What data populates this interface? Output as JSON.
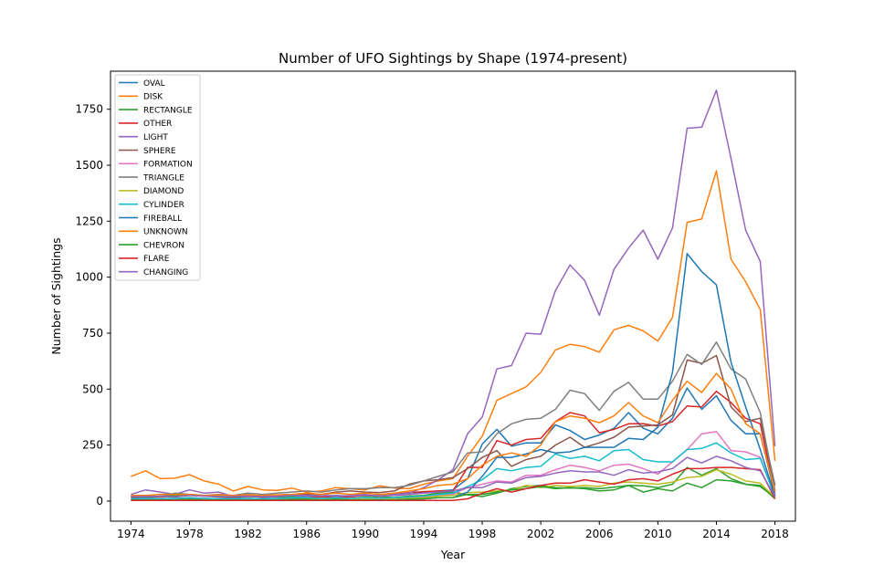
{
  "chart_data": {
    "type": "line",
    "title": "Number of UFO Sightings by Shape (1974-present)",
    "xlabel": "Year",
    "ylabel": "Number of Sightings",
    "xlim": [
      1972.6,
      2019.4
    ],
    "ylim": [
      -90,
      1920
    ],
    "x_ticks": [
      1974,
      1978,
      1982,
      1986,
      1990,
      1994,
      1998,
      2002,
      2006,
      2010,
      2014,
      2018
    ],
    "y_ticks": [
      0,
      250,
      500,
      750,
      1000,
      1250,
      1500,
      1750
    ],
    "x_tick_labels": [
      "1974",
      "1978",
      "1982",
      "1986",
      "1990",
      "1994",
      "1998",
      "2002",
      "2006",
      "2010",
      "2014",
      "2018"
    ],
    "y_tick_labels": [
      "0",
      "250",
      "500",
      "750",
      "1000",
      "1250",
      "1500",
      "1750"
    ],
    "grid": false,
    "legend_position": "top-left",
    "x": [
      1974,
      1975,
      1976,
      1977,
      1978,
      1979,
      1980,
      1981,
      1982,
      1983,
      1984,
      1985,
      1986,
      1987,
      1988,
      1989,
      1990,
      1991,
      1992,
      1993,
      1994,
      1995,
      1996,
      1997,
      1998,
      1999,
      2000,
      2001,
      2002,
      2003,
      2004,
      2005,
      2006,
      2007,
      2008,
      2009,
      2010,
      2011,
      2012,
      2013,
      2014,
      2015,
      2016,
      2017,
      2018
    ],
    "series": [
      {
        "name": "OVAL",
        "color": "#1f77b4",
        "values": [
          20,
          22,
          20,
          25,
          28,
          24,
          20,
          18,
          22,
          18,
          20,
          24,
          26,
          22,
          20,
          22,
          26,
          24,
          25,
          30,
          38,
          45,
          50,
          100,
          255,
          320,
          245,
          260,
          260,
          340,
          315,
          275,
          295,
          325,
          395,
          325,
          300,
          370,
          505,
          410,
          470,
          360,
          300,
          300,
          30
        ]
      },
      {
        "name": "DISK",
        "color": "#ff7f0e",
        "values": [
          110,
          135,
          100,
          102,
          118,
          90,
          75,
          45,
          65,
          50,
          48,
          58,
          40,
          45,
          60,
          55,
          50,
          68,
          58,
          55,
          75,
          90,
          100,
          200,
          290,
          450,
          480,
          510,
          575,
          675,
          700,
          690,
          665,
          765,
          785,
          760,
          715,
          820,
          1245,
          1260,
          1475,
          1080,
          980,
          855,
          180
        ]
      },
      {
        "name": "RECTANGLE",
        "color": "#2ca02c",
        "values": [
          20,
          18,
          22,
          25,
          28,
          24,
          20,
          20,
          22,
          20,
          18,
          20,
          22,
          20,
          18,
          20,
          22,
          18,
          16,
          22,
          25,
          35,
          40,
          28,
          20,
          35,
          55,
          65,
          70,
          60,
          58,
          60,
          55,
          62,
          70,
          68,
          60,
          75,
          150,
          115,
          145,
          100,
          75,
          65,
          15
        ]
      },
      {
        "name": "OTHER",
        "color": "#d62728",
        "values": [
          10,
          10,
          12,
          10,
          15,
          12,
          10,
          10,
          12,
          10,
          12,
          15,
          15,
          18,
          20,
          18,
          25,
          22,
          30,
          38,
          42,
          45,
          45,
          150,
          150,
          270,
          250,
          275,
          280,
          355,
          395,
          380,
          305,
          320,
          345,
          345,
          335,
          355,
          425,
          420,
          490,
          440,
          370,
          345,
          40
        ]
      },
      {
        "name": "LIGHT",
        "color": "#9467bd",
        "values": [
          30,
          50,
          40,
          30,
          50,
          35,
          40,
          20,
          30,
          15,
          20,
          25,
          20,
          30,
          20,
          25,
          30,
          20,
          30,
          35,
          60,
          95,
          140,
          300,
          375,
          590,
          605,
          750,
          745,
          940,
          1055,
          985,
          830,
          1035,
          1130,
          1210,
          1080,
          1220,
          1665,
          1670,
          1835,
          1530,
          1210,
          1070,
          245
        ]
      },
      {
        "name": "SPHERE",
        "color": "#8c564b",
        "values": [
          15,
          15,
          20,
          18,
          25,
          22,
          18,
          15,
          20,
          18,
          22,
          28,
          32,
          30,
          40,
          45,
          40,
          38,
          45,
          75,
          90,
          95,
          105,
          145,
          195,
          225,
          155,
          185,
          200,
          250,
          285,
          240,
          260,
          285,
          330,
          335,
          340,
          385,
          630,
          615,
          650,
          420,
          355,
          370,
          70
        ]
      },
      {
        "name": "FORMATION",
        "color": "#e377c2",
        "values": [
          8,
          8,
          10,
          8,
          12,
          10,
          8,
          8,
          10,
          8,
          10,
          12,
          12,
          10,
          12,
          10,
          12,
          10,
          12,
          15,
          18,
          25,
          30,
          60,
          75,
          90,
          85,
          115,
          115,
          140,
          160,
          150,
          135,
          160,
          165,
          145,
          120,
          175,
          230,
          300,
          310,
          225,
          220,
          195,
          25
        ]
      },
      {
        "name": "TRIANGLE",
        "color": "#7f7f7f",
        "values": [
          20,
          25,
          20,
          35,
          30,
          25,
          30,
          25,
          35,
          30,
          35,
          40,
          45,
          40,
          50,
          55,
          55,
          60,
          60,
          70,
          90,
          110,
          130,
          215,
          220,
          300,
          345,
          365,
          370,
          410,
          495,
          480,
          405,
          490,
          530,
          455,
          455,
          535,
          655,
          610,
          710,
          590,
          545,
          395,
          50
        ]
      },
      {
        "name": "DIAMOND",
        "color": "#bcbd22",
        "values": [
          5,
          5,
          6,
          5,
          8,
          6,
          5,
          5,
          6,
          5,
          6,
          8,
          10,
          8,
          10,
          8,
          10,
          8,
          10,
          12,
          15,
          22,
          25,
          38,
          40,
          45,
          50,
          70,
          60,
          70,
          65,
          70,
          65,
          80,
          85,
          80,
          75,
          85,
          105,
          110,
          140,
          120,
          90,
          80,
          15
        ]
      },
      {
        "name": "CYLINDER",
        "color": "#17becf",
        "values": [
          10,
          12,
          10,
          12,
          15,
          12,
          10,
          10,
          12,
          10,
          12,
          15,
          15,
          12,
          15,
          12,
          15,
          12,
          15,
          18,
          22,
          30,
          35,
          65,
          95,
          145,
          135,
          150,
          155,
          210,
          190,
          200,
          180,
          225,
          230,
          185,
          175,
          175,
          230,
          235,
          260,
          215,
          185,
          190,
          20
        ]
      },
      {
        "name": "FIREBALL",
        "color": "#1f77b4",
        "values": [
          5,
          5,
          5,
          5,
          8,
          5,
          5,
          5,
          5,
          5,
          5,
          8,
          8,
          5,
          8,
          5,
          5,
          5,
          5,
          8,
          10,
          15,
          15,
          40,
          110,
          195,
          195,
          210,
          230,
          215,
          220,
          240,
          240,
          240,
          280,
          275,
          330,
          575,
          1105,
          1025,
          965,
          620,
          420,
          230,
          20
        ]
      },
      {
        "name": "UNKNOWN",
        "color": "#ff7f0e",
        "values": [
          25,
          25,
          30,
          30,
          30,
          25,
          28,
          25,
          28,
          25,
          28,
          30,
          35,
          30,
          35,
          30,
          35,
          30,
          35,
          45,
          55,
          70,
          75,
          100,
          160,
          200,
          215,
          200,
          250,
          355,
          380,
          370,
          350,
          380,
          440,
          380,
          350,
          450,
          535,
          485,
          570,
          500,
          345,
          300,
          40
        ]
      },
      {
        "name": "CHEVRON",
        "color": "#2ca02c",
        "values": [
          5,
          5,
          5,
          5,
          8,
          5,
          5,
          5,
          5,
          5,
          5,
          8,
          8,
          5,
          8,
          5,
          5,
          5,
          5,
          8,
          10,
          15,
          15,
          30,
          30,
          40,
          50,
          55,
          65,
          55,
          60,
          55,
          45,
          50,
          70,
          40,
          55,
          45,
          80,
          60,
          95,
          90,
          75,
          70,
          10
        ]
      },
      {
        "name": "FLARE",
        "color": "#d62728",
        "values": [
          3,
          3,
          3,
          3,
          3,
          3,
          3,
          3,
          3,
          3,
          3,
          3,
          3,
          3,
          3,
          3,
          3,
          3,
          3,
          3,
          3,
          3,
          3,
          10,
          35,
          55,
          40,
          55,
          70,
          80,
          80,
          95,
          85,
          75,
          95,
          100,
          90,
          120,
          145,
          145,
          150,
          150,
          145,
          140,
          10
        ]
      },
      {
        "name": "CHANGING",
        "color": "#9467bd",
        "values": [
          20,
          20,
          22,
          20,
          25,
          22,
          20,
          20,
          22,
          20,
          22,
          25,
          25,
          22,
          25,
          22,
          25,
          22,
          25,
          30,
          35,
          40,
          45,
          60,
          60,
          85,
          80,
          105,
          110,
          125,
          135,
          130,
          130,
          115,
          140,
          125,
          130,
          145,
          195,
          170,
          200,
          180,
          150,
          135,
          20
        ]
      }
    ]
  }
}
